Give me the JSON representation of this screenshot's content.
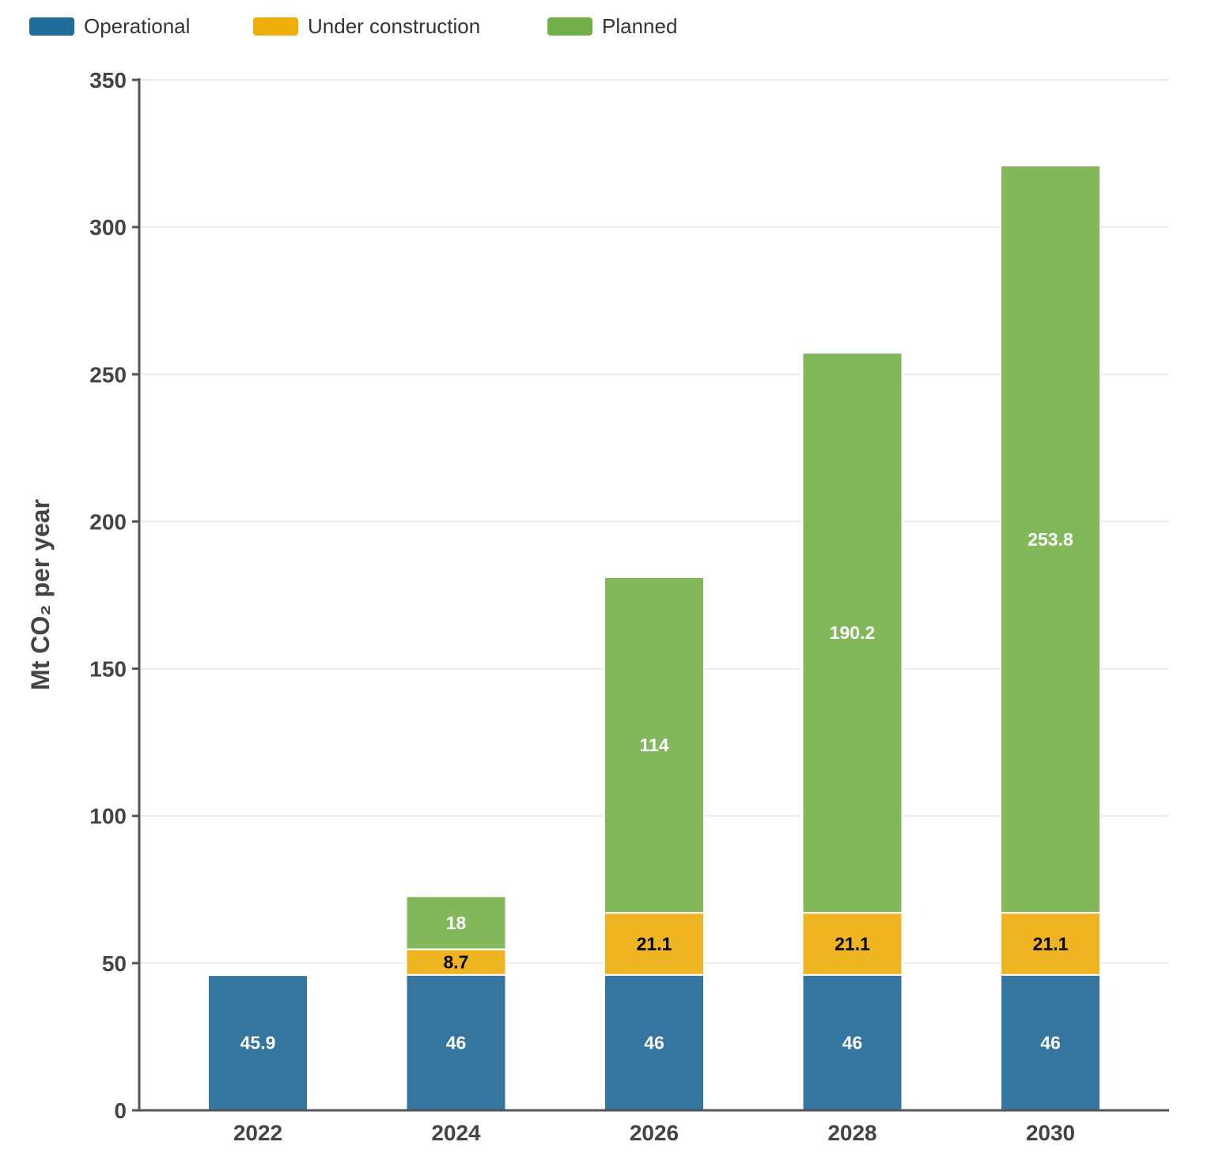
{
  "chart_data": {
    "type": "bar",
    "stacked": true,
    "title": "",
    "xlabel": "",
    "ylabel": "Mt CO₂ per year",
    "categories": [
      "2022",
      "2024",
      "2026",
      "2028",
      "2030"
    ],
    "series": [
      {
        "name": "Operational",
        "values": [
          45.9,
          46,
          46,
          46,
          46
        ],
        "color": "#3476a0",
        "legend_color": "#1f6b99",
        "label_color": "#ffffff"
      },
      {
        "name": "Under construction",
        "values": [
          0,
          8.7,
          21.1,
          21.1,
          21.1
        ],
        "color": "#efb422",
        "legend_color": "#efad0a",
        "label_color": "#000000"
      },
      {
        "name": "Planned",
        "values": [
          0,
          18,
          114,
          190.2,
          253.8
        ],
        "color": "#82b75a",
        "legend_color": "#72ae4a",
        "label_color": "#ffffff"
      }
    ],
    "ylim": [
      0,
      350
    ],
    "yticks": [
      0,
      50,
      100,
      150,
      200,
      250,
      300,
      350
    ],
    "grid": true,
    "legend_placement": "top-left"
  }
}
